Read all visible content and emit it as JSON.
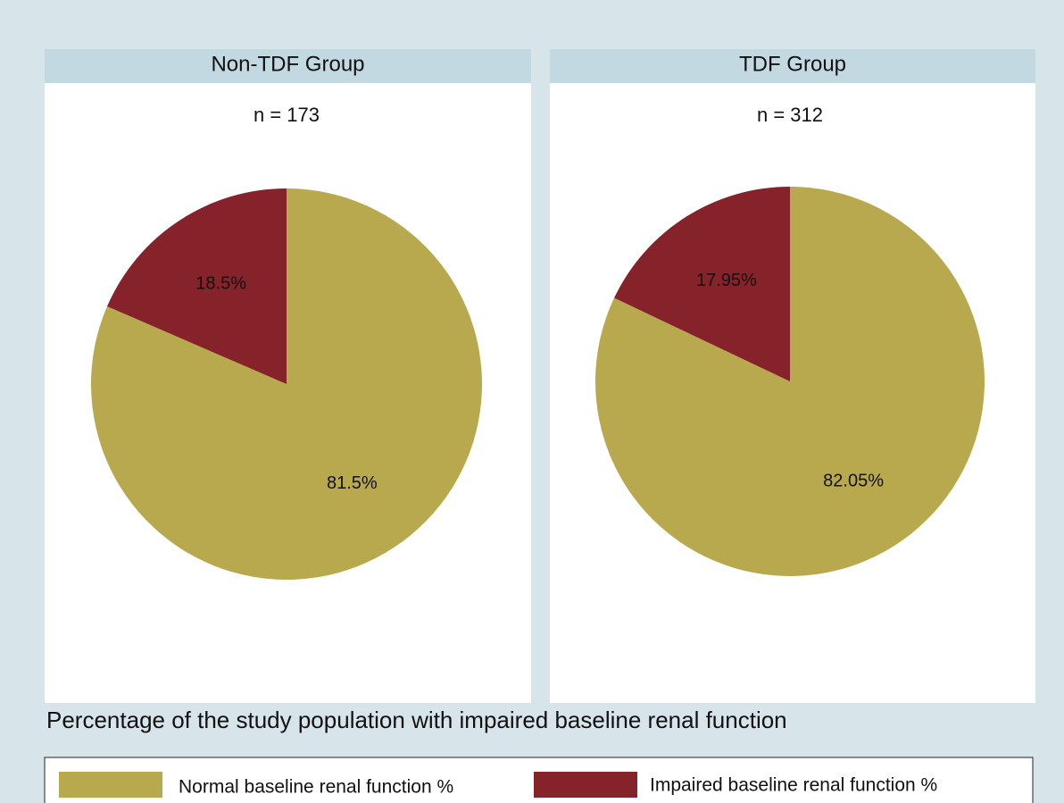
{
  "chart_data": [
    {
      "type": "pie",
      "title": "Non-TDF Group",
      "subtitle": "n = 173",
      "categories": [
        "Normal baseline renal function %",
        "Impaired baseline renal function %"
      ],
      "values": [
        81.5,
        18.5
      ],
      "value_labels": [
        "81.5%",
        "18.5%"
      ],
      "colors": [
        "#b8a94e",
        "#862229"
      ]
    },
    {
      "type": "pie",
      "title": "TDF Group",
      "subtitle": "n = 312",
      "categories": [
        "Normal baseline renal function %",
        "Impaired baseline renal function %"
      ],
      "values": [
        82.05,
        17.95
      ],
      "value_labels": [
        "82.05%",
        "17.95%"
      ],
      "colors": [
        "#b8a94e",
        "#862229"
      ]
    }
  ],
  "caption": "Percentage of the study population with impaired baseline renal function"
}
